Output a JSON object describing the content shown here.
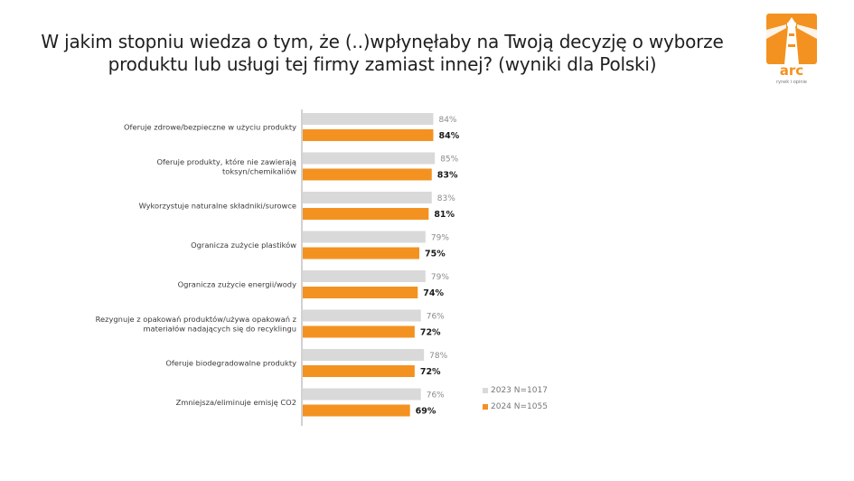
{
  "title_line1": "W jakim stopniu wiedza o tym, że (..)wpłynęłaby na Twoją decyzję o wyborze",
  "title_line2": "produktu lub usługi tej firmy zamiast innej? (wyniki dla Polski)",
  "logo": {
    "text": "arc",
    "tagline": "rynek i opinie",
    "color": "#f39220"
  },
  "colors": {
    "series_2023": "#d9d9d9",
    "series_2024": "#f39220",
    "axis": "#a6a6a6"
  },
  "chart_data": {
    "type": "bar",
    "orientation": "horizontal",
    "categories": [
      [
        "Oferuje zdrowe/bezpieczne w użyciu produkty"
      ],
      [
        "Oferuje produkty, które nie zawierają",
        "toksyn/chemikaliów"
      ],
      [
        "Wykorzystuje naturalne składniki/surowce"
      ],
      [
        "Ogranicza zużycie plastików"
      ],
      [
        "Ogranicza zużycie energii/wody"
      ],
      [
        "Rezygnuje z opakowań produktów/używa opakowań z",
        "materiałów nadających się do recyklingu"
      ],
      [
        "Oferuje biodegradowalne produkty"
      ],
      [
        "Zmniejsza/eliminuje emisję CO2"
      ]
    ],
    "series": [
      {
        "name": "2023 N=1017",
        "values": [
          84,
          85,
          83,
          79,
          79,
          76,
          78,
          76
        ],
        "labels": [
          "84%",
          "85%",
          "83%",
          "79%",
          "79%",
          "76%",
          "78%",
          "76%"
        ]
      },
      {
        "name": "2024 N=1055",
        "values": [
          84,
          83,
          81,
          75,
          74,
          72,
          72,
          69
        ],
        "labels": [
          "84%",
          "83%",
          "81%",
          "75%",
          "74%",
          "72%",
          "72%",
          "69%"
        ]
      }
    ],
    "xlim": [
      0,
      100
    ],
    "grid": false,
    "legend_position": "bottom-right"
  }
}
